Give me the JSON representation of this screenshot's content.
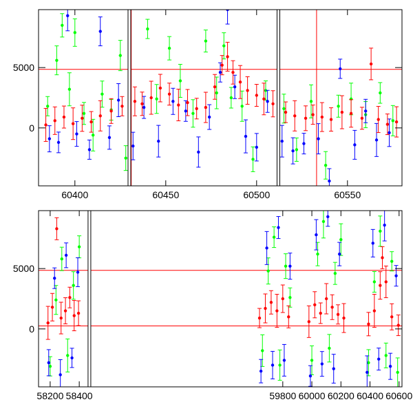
{
  "chart_data": [
    {
      "type": "scatter",
      "title": "",
      "xlabel": "",
      "ylabel": "",
      "xlim": [
        60380,
        60580
      ],
      "ylim": [
        -4800,
        9800
      ],
      "grid": false,
      "legend": "none",
      "x_ticks": [
        60400,
        60450,
        60500,
        60550
      ],
      "x_tick_labels": [
        "60400",
        "60450",
        "60500",
        "60550"
      ],
      "y_ticks": [
        0,
        5000
      ],
      "y_tick_labels": [
        "0",
        "5000"
      ],
      "reference_lines_y": [
        4850
      ],
      "reference_lines_x": [
        60431,
        60533
      ],
      "break_x": [
        60430,
        60512
      ],
      "series": [
        {
          "color": "#00ff00",
          "marker": "errorbar-point",
          "x": [
            60385,
            60390,
            60393,
            60397,
            60400,
            60405,
            60410,
            60415,
            60420,
            60425,
            60428,
            60440,
            60445,
            60452,
            60458,
            60465,
            60472,
            60478,
            60482,
            60486,
            60492,
            60498,
            60505,
            60515,
            60522,
            60530,
            60538,
            60545,
            60552,
            60560,
            60568,
            60575
          ],
          "y": [
            1800,
            5600,
            8500,
            3200,
            7900,
            1200,
            -600,
            2800,
            1500,
            6000,
            -2500,
            8200,
            2400,
            6600,
            3900,
            1200,
            7200,
            2900,
            6800,
            2500,
            1800,
            -2600,
            3100,
            1600,
            -1800,
            2200,
            -3100,
            1800,
            2400,
            1100,
            2900,
            600
          ]
        },
        {
          "color": "#0000ff",
          "marker": "errorbar-point",
          "x": [
            60386,
            60391,
            60396,
            60401,
            60408,
            60414,
            60419,
            60424,
            60432,
            60438,
            60446,
            60454,
            60461,
            60468,
            60474,
            60480,
            60484,
            60488,
            60494,
            60500,
            60506,
            60514,
            60520,
            60526,
            60534,
            60540,
            60546,
            60554,
            60560,
            60566,
            60573
          ],
          "y": [
            -900,
            -1200,
            9300,
            -500,
            -1800,
            8000,
            -800,
            2300,
            -1500,
            1700,
            -1100,
            2200,
            1400,
            -2000,
            900,
            4600,
            9800,
            3400,
            -700,
            -1600,
            2200,
            -1100,
            -1900,
            -1300,
            -900,
            -4400,
            4900,
            -1400,
            1400,
            -1000,
            -400
          ]
        },
        {
          "color": "#ff0000",
          "marker": "errorbar-point",
          "x": [
            60384,
            60389,
            60394,
            60399,
            60404,
            60409,
            60414,
            60420,
            60426,
            60433,
            60437,
            60442,
            60447,
            60452,
            60457,
            60462,
            60467,
            60472,
            60477,
            60481,
            60484,
            60487,
            60491,
            60495,
            60500,
            60504,
            60509,
            60516,
            60521,
            60527,
            60531,
            60536,
            60541,
            60547,
            60552,
            60558,
            60563,
            60567,
            60572,
            60577
          ],
          "y": [
            250,
            600,
            900,
            350,
            800,
            500,
            1000,
            1400,
            1800,
            2200,
            2000,
            2500,
            3300,
            2800,
            1900,
            2100,
            1600,
            1700,
            3400,
            5200,
            5900,
            4600,
            3800,
            3100,
            2700,
            2400,
            2000,
            1300,
            1000,
            800,
            1100,
            900,
            700,
            1300,
            1200,
            800,
            5300,
            700,
            300,
            500
          ]
        }
      ]
    },
    {
      "type": "scatter",
      "title": "",
      "xlabel": "",
      "ylabel": "",
      "xlim": [
        58120,
        60620
      ],
      "ylim": [
        -4800,
        9800
      ],
      "grid": false,
      "legend": "none",
      "x_ticks": [
        58200,
        58400,
        59800,
        60000,
        60200,
        60400,
        60600
      ],
      "x_tick_labels": [
        "58200",
        "58400",
        "59800",
        "60000",
        "60200",
        "60400",
        "60600"
      ],
      "y_ticks": [
        0,
        5000
      ],
      "y_tick_labels": [
        "0",
        "5000"
      ],
      "reference_lines_y": [
        4850,
        250
      ],
      "break_x": [
        58470
      ],
      "series": [
        {
          "color": "#00ff00",
          "marker": "errorbar-point",
          "x": [
            58200,
            58240,
            58280,
            58320,
            58360,
            58400,
            59660,
            59700,
            59740,
            59780,
            59820,
            59850,
            60000,
            60040,
            60080,
            60120,
            60160,
            60200,
            60390,
            60430,
            60470,
            60510,
            60550,
            60590
          ],
          "y": [
            -3100,
            2400,
            5800,
            -2200,
            3600,
            6800,
            -1800,
            4800,
            7600,
            -3000,
            5200,
            2600,
            -2600,
            6200,
            8900,
            -1600,
            4600,
            7400,
            -2800,
            3900,
            8100,
            -2200,
            5600,
            -3600
          ]
        },
        {
          "color": "#0000ff",
          "marker": "errorbar-point",
          "x": [
            58190,
            58230,
            58270,
            58310,
            58350,
            58390,
            59650,
            59690,
            59730,
            59770,
            59810,
            59850,
            59990,
            60030,
            60070,
            60110,
            60150,
            60190,
            60380,
            60420,
            60460,
            60500,
            60540,
            60580
          ],
          "y": [
            -2800,
            4200,
            -3800,
            6100,
            -2400,
            4700,
            -3500,
            6700,
            -3000,
            8400,
            -2600,
            5200,
            -3900,
            7800,
            -2900,
            9300,
            -3300,
            6200,
            -3600,
            7100,
            -2500,
            8600,
            -3100,
            4400
          ]
        },
        {
          "color": "#ff0000",
          "marker": "errorbar-point",
          "x": [
            58185,
            58215,
            58245,
            58275,
            58305,
            58335,
            58365,
            58395,
            59640,
            59680,
            59720,
            59760,
            59800,
            59840,
            59980,
            60020,
            60060,
            60100,
            60140,
            60180,
            60220,
            60390,
            60430,
            60470,
            60485,
            60510,
            60550,
            60595
          ],
          "y": [
            500,
            1800,
            8300,
            900,
            1500,
            2600,
            1100,
            1300,
            900,
            1700,
            2200,
            1500,
            2500,
            1000,
            600,
            2000,
            1300,
            2500,
            1800,
            1200,
            900,
            400,
            1500,
            3600,
            5900,
            3900,
            1000,
            300
          ]
        }
      ]
    }
  ]
}
